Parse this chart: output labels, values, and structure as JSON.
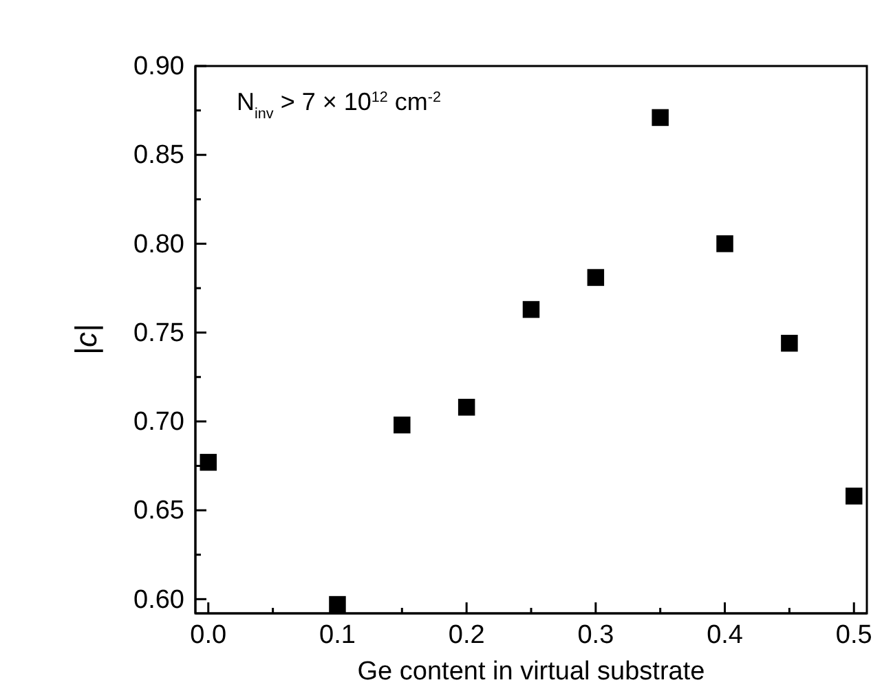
{
  "chart_data": {
    "type": "scatter",
    "xlabel": "Ge content in virtual substrate",
    "ylabel": "|c|",
    "marker": "square",
    "x": [
      0,
      0.1,
      0.15,
      0.2,
      0.25,
      0.3,
      0.35,
      0.4,
      0.45,
      0.5
    ],
    "series": [
      {
        "color": "#000000",
        "values": [
          0.677,
          0.597,
          0.698,
          0.708,
          0.763,
          0.781,
          0.871,
          0.8,
          0.744,
          0.658
        ]
      }
    ],
    "xlim": [
      -0.01,
      0.51
    ],
    "ylim": [
      0.592,
      0.9
    ],
    "xticks": [
      {
        "value": 0,
        "label": "0.0"
      },
      {
        "value": 0.05,
        "label": null
      },
      {
        "value": 0.1,
        "label": "0.1"
      },
      {
        "value": 0.15,
        "label": null
      },
      {
        "value": 0.2,
        "label": "0.2"
      },
      {
        "value": 0.25,
        "label": null
      },
      {
        "value": 0.3,
        "label": "0.3"
      },
      {
        "value": 0.35,
        "label": null
      },
      {
        "value": 0.4,
        "label": "0.4"
      },
      {
        "value": 0.45,
        "label": null
      },
      {
        "value": 0.5,
        "label": "0.5"
      }
    ],
    "yticks": [
      {
        "value": 0.6,
        "label": "0.60"
      },
      {
        "value": 0.625,
        "label": null
      },
      {
        "value": 0.65,
        "label": "0.65"
      },
      {
        "value": 0.675,
        "label": null
      },
      {
        "value": 0.7,
        "label": "0.70"
      },
      {
        "value": 0.725,
        "label": null
      },
      {
        "value": 0.75,
        "label": "0.75"
      },
      {
        "value": 0.775,
        "label": null
      },
      {
        "value": 0.8,
        "label": "0.80"
      },
      {
        "value": 0.825,
        "label": null
      },
      {
        "value": 0.85,
        "label": "0.85"
      },
      {
        "value": 0.875,
        "label": null
      },
      {
        "value": 0.9,
        "label": "0.90"
      }
    ],
    "annotations": [
      "N$_{inv}$ > 7 × 10$^{12}$ cm$^{-2}$"
    ],
    "grid": false
  }
}
